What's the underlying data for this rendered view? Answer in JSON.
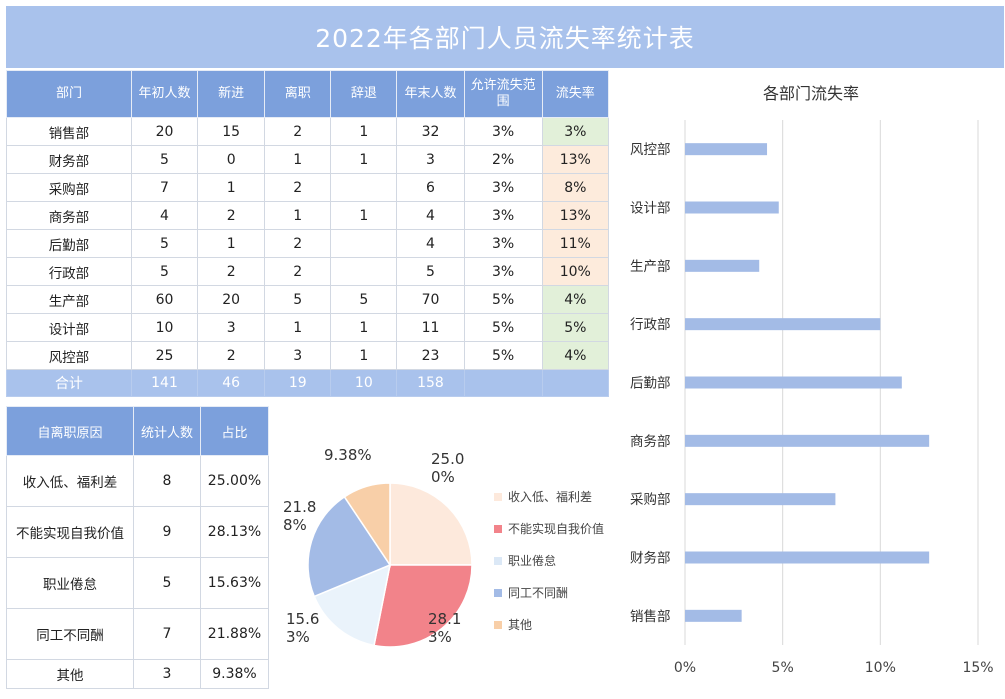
{
  "title": "2022年各部门人员流失率统计表",
  "main_table": {
    "headers": [
      "部门",
      "年初人数",
      "新进",
      "离职",
      "辞退",
      "年末人数",
      "允许流失范围",
      "流失率"
    ],
    "rows": [
      {
        "dept": "销售部",
        "start": "20",
        "new": "15",
        "left": "2",
        "fired": "1",
        "end": "32",
        "allowed": "3%",
        "rate": "3%",
        "status": "green"
      },
      {
        "dept": "财务部",
        "start": "5",
        "new": "0",
        "left": "1",
        "fired": "1",
        "end": "3",
        "allowed": "2%",
        "rate": "13%",
        "status": "orange"
      },
      {
        "dept": "采购部",
        "start": "7",
        "new": "1",
        "left": "2",
        "fired": "",
        "end": "6",
        "allowed": "3%",
        "rate": "8%",
        "status": "orange"
      },
      {
        "dept": "商务部",
        "start": "4",
        "new": "2",
        "left": "1",
        "fired": "1",
        "end": "4",
        "allowed": "3%",
        "rate": "13%",
        "status": "orange"
      },
      {
        "dept": "后勤部",
        "start": "5",
        "new": "1",
        "left": "2",
        "fired": "",
        "end": "4",
        "allowed": "3%",
        "rate": "11%",
        "status": "orange"
      },
      {
        "dept": "行政部",
        "start": "5",
        "new": "2",
        "left": "2",
        "fired": "",
        "end": "5",
        "allowed": "3%",
        "rate": "10%",
        "status": "orange"
      },
      {
        "dept": "生产部",
        "start": "60",
        "new": "20",
        "left": "5",
        "fired": "5",
        "end": "70",
        "allowed": "5%",
        "rate": "4%",
        "status": "green"
      },
      {
        "dept": "设计部",
        "start": "10",
        "new": "3",
        "left": "1",
        "fired": "1",
        "end": "11",
        "allowed": "5%",
        "rate": "5%",
        "status": "green"
      },
      {
        "dept": "风控部",
        "start": "25",
        "new": "2",
        "left": "3",
        "fired": "1",
        "end": "23",
        "allowed": "5%",
        "rate": "4%",
        "status": "green"
      }
    ],
    "total": {
      "label": "合计",
      "start": "141",
      "new": "46",
      "left": "19",
      "fired": "10",
      "end": "158",
      "allowed": "",
      "rate": ""
    }
  },
  "reason_table": {
    "headers": [
      "自离职原因",
      "统计人数",
      "占比"
    ],
    "rows": [
      {
        "reason": "收入低、福利差",
        "count": "8",
        "pct": "25.00%"
      },
      {
        "reason": "不能实现自我价值",
        "count": "9",
        "pct": "28.13%"
      },
      {
        "reason": "职业倦怠",
        "count": "5",
        "pct": "15.63%"
      },
      {
        "reason": "同工不同酬",
        "count": "7",
        "pct": "21.88%"
      },
      {
        "reason": "其他",
        "count": "3",
        "pct": "9.38%"
      }
    ]
  },
  "colors": {
    "header_blue": "#7ca0dc",
    "title_blue": "#a9c2ec",
    "bar": "#a3bbe6",
    "green_cell": "#e2f0d9",
    "orange_cell": "#fdebdc"
  },
  "chart_data": [
    {
      "type": "pie",
      "title": "",
      "labels": [
        "收入低、福利差",
        "不能实现自我价值",
        "职业倦怠",
        "同工不同酬",
        "其他"
      ],
      "values": [
        25.0,
        28.13,
        15.63,
        21.88,
        9.38
      ],
      "data_labels": [
        "25.00%",
        "28.13%",
        "15.63%",
        "21.88%",
        "9.38%"
      ],
      "colors": [
        "#fde9dc",
        "#f2838a",
        "#eaf3fb",
        "#a3bbe6",
        "#f8cfa8"
      ],
      "legend": "right"
    },
    {
      "type": "bar",
      "orientation": "horizontal",
      "title": "各部门流失率",
      "categories": [
        "销售部",
        "财务部",
        "采购部",
        "商务部",
        "后勤部",
        "行政部",
        "生产部",
        "设计部",
        "风控部"
      ],
      "values": [
        0.029,
        0.125,
        0.077,
        0.125,
        0.111,
        0.1,
        0.038,
        0.048,
        0.042
      ],
      "xlim": [
        0,
        0.15
      ],
      "x_ticks": [
        "0%",
        "5%",
        "10%",
        "15%"
      ],
      "grid": true
    }
  ]
}
